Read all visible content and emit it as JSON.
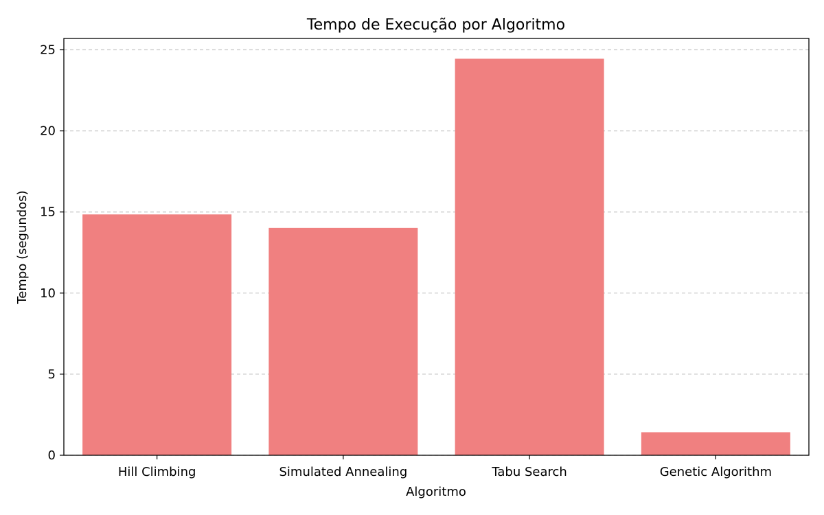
{
  "chart_data": {
    "type": "bar",
    "title": "Tempo de Execução por Algoritmo",
    "xlabel": "Algoritmo",
    "ylabel": "Tempo (segundos)",
    "categories": [
      "Hill Climbing",
      "Simulated Annealing",
      "Tabu Search",
      "Genetic Algorithm"
    ],
    "values": [
      14.85,
      14.02,
      24.45,
      1.42
    ],
    "ylim": [
      0,
      25.7
    ],
    "yticks": [
      0,
      5,
      10,
      15,
      20,
      25
    ],
    "ytick_labels": [
      "0",
      "5",
      "10",
      "15",
      "20",
      "25"
    ],
    "grid": "y-dashed",
    "bar_color": "#F08080",
    "grid_color": "#C8C8C8",
    "axis_color": "#000000"
  }
}
